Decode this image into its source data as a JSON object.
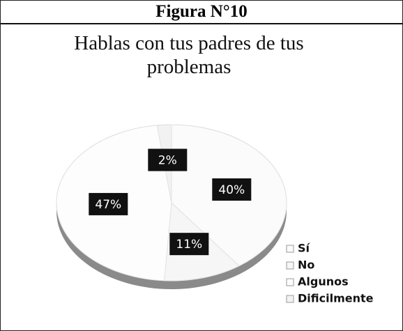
{
  "header": {
    "title": "Figura N°10"
  },
  "chart_data": {
    "type": "pie",
    "title": "Hablas con tus padres de tus problemas",
    "categories": [
      "Sí",
      "No",
      "Algunos",
      "Dificilmente"
    ],
    "values": [
      40,
      11,
      47,
      2
    ],
    "value_labels": [
      "40%",
      "11%",
      "47%",
      "2%"
    ],
    "colors": [
      "#fbfbfb",
      "#f6f6f6",
      "#fdfdfd",
      "#f2f2f2"
    ],
    "legend": "right"
  }
}
